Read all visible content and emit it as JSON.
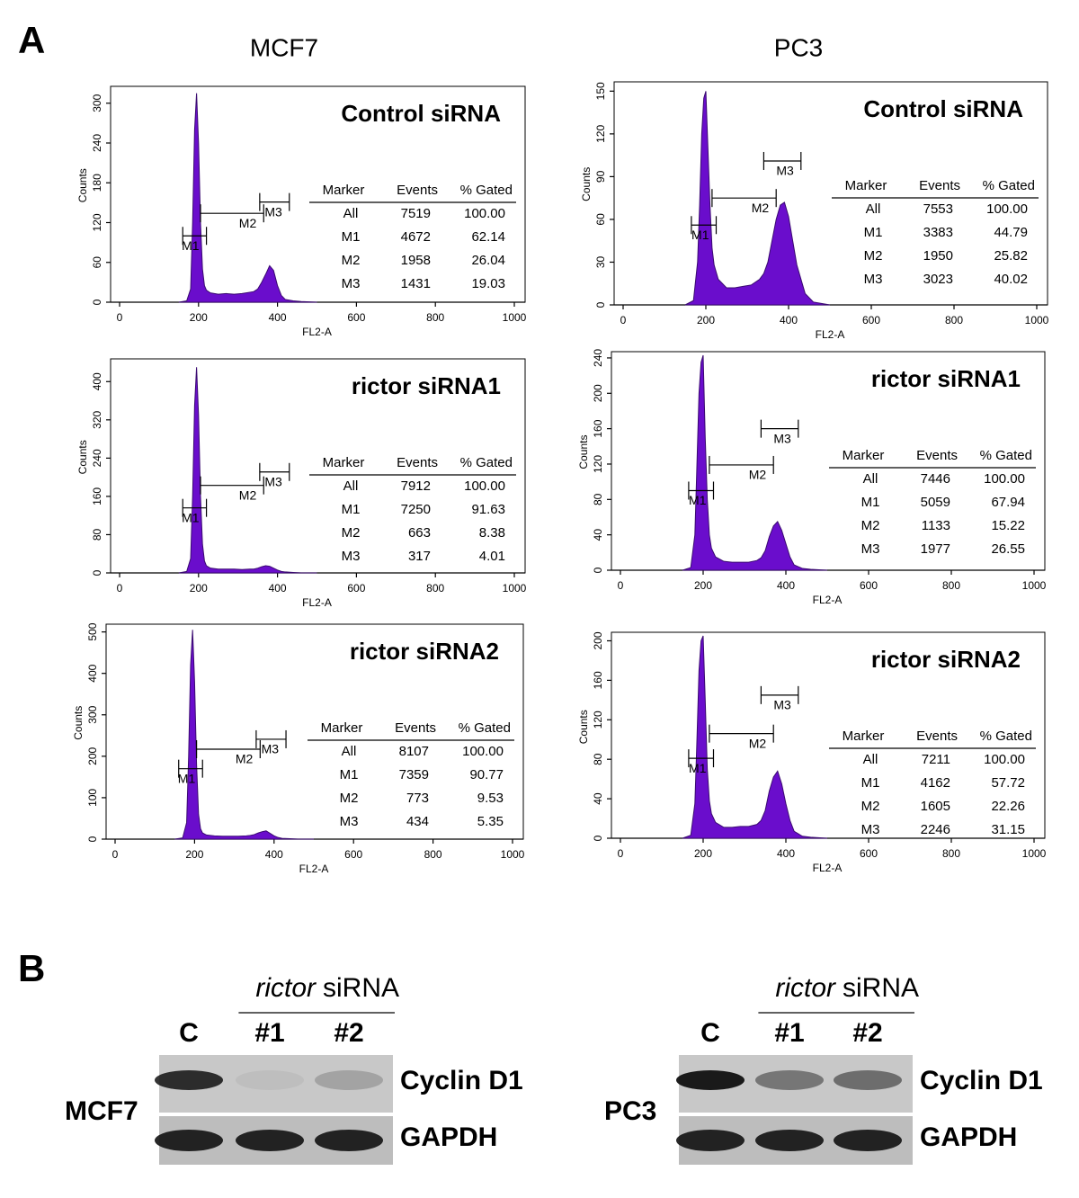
{
  "panel_labels": {
    "a": "A",
    "b": "B"
  },
  "columns": [
    "MCF7",
    "PC3"
  ],
  "chart_data": [
    {
      "type": "area",
      "title": "Control siRNA",
      "x_label": "FL2-A",
      "y_label": "Counts",
      "color": "#6a0dcc",
      "x": [
        150,
        170,
        180,
        185,
        190,
        195,
        200,
        205,
        210,
        215,
        220,
        230,
        250,
        270,
        290,
        310,
        330,
        340,
        350,
        360,
        370,
        380,
        390,
        400,
        410,
        420,
        440,
        460,
        500
      ],
      "values": [
        0,
        2,
        20,
        120,
        260,
        315,
        240,
        120,
        50,
        25,
        18,
        14,
        12,
        13,
        12,
        13,
        15,
        16,
        20,
        30,
        42,
        55,
        48,
        25,
        10,
        4,
        2,
        1,
        0
      ],
      "xlim": [
        0,
        1000
      ],
      "xticks": [
        0,
        200,
        400,
        600,
        800,
        1000
      ],
      "ylim": [
        0,
        320
      ],
      "yticks": [
        0,
        60,
        120,
        180,
        240,
        300
      ],
      "markers": [
        {
          "label": "M1",
          "range": [
            160,
            220
          ],
          "y": 100
        },
        {
          "label": "M2",
          "range": [
            205,
            365
          ],
          "y": 134
        },
        {
          "label": "M3",
          "range": [
            355,
            430
          ],
          "y": 151
        }
      ],
      "table": {
        "header": [
          "Marker",
          "Events",
          "% Gated"
        ],
        "rows": [
          [
            "All",
            "7519",
            "100.00"
          ],
          [
            "M1",
            "4672",
            "62.14"
          ],
          [
            "M2",
            "1958",
            "26.04"
          ],
          [
            "M3",
            "1431",
            "19.03"
          ]
        ]
      }
    },
    {
      "type": "area",
      "title": "Control siRNA",
      "x_label": "FL2-A",
      "y_label": "Counts",
      "color": "#6a0dcc",
      "x": [
        150,
        170,
        180,
        185,
        190,
        195,
        200,
        205,
        210,
        215,
        220,
        230,
        250,
        270,
        290,
        310,
        330,
        340,
        350,
        360,
        370,
        380,
        390,
        400,
        410,
        420,
        440,
        460,
        500
      ],
      "values": [
        0,
        3,
        30,
        70,
        120,
        145,
        150,
        110,
        70,
        40,
        28,
        18,
        12,
        12,
        13,
        14,
        18,
        22,
        30,
        45,
        60,
        70,
        72,
        62,
        45,
        28,
        8,
        2,
        0
      ],
      "xlim": [
        0,
        1000
      ],
      "xticks": [
        0,
        200,
        400,
        600,
        800,
        1000
      ],
      "ylim": [
        0,
        154
      ],
      "yticks": [
        0,
        30,
        60,
        90,
        120,
        150
      ],
      "markers": [
        {
          "label": "M1",
          "range": [
            165,
            225
          ],
          "y": 56
        },
        {
          "label": "M2",
          "range": [
            215,
            370
          ],
          "y": 75
        },
        {
          "label": "M3",
          "range": [
            340,
            430
          ],
          "y": 101
        }
      ],
      "table": {
        "header": [
          "Marker",
          "Events",
          "% Gated"
        ],
        "rows": [
          [
            "All",
            "7553",
            "100.00"
          ],
          [
            "M1",
            "3383",
            "44.79"
          ],
          [
            "M2",
            "1950",
            "25.82"
          ],
          [
            "M3",
            "3023",
            "40.02"
          ]
        ]
      }
    },
    {
      "type": "area",
      "title": "rictor siRNA1",
      "x_label": "FL2-A",
      "y_label": "Counts",
      "color": "#6a0dcc",
      "x": [
        150,
        170,
        180,
        185,
        190,
        195,
        200,
        205,
        210,
        215,
        220,
        230,
        250,
        270,
        290,
        310,
        330,
        340,
        350,
        360,
        370,
        380,
        390,
        400,
        410,
        420,
        440,
        460,
        500
      ],
      "values": [
        0,
        3,
        30,
        160,
        350,
        430,
        330,
        160,
        60,
        25,
        15,
        10,
        8,
        8,
        8,
        7,
        8,
        8,
        10,
        13,
        15,
        14,
        10,
        6,
        3,
        2,
        1,
        0,
        0
      ],
      "xlim": [
        0,
        1000
      ],
      "xticks": [
        0,
        200,
        400,
        600,
        800,
        1000
      ],
      "ylim": [
        0,
        440
      ],
      "yticks": [
        0,
        80,
        160,
        240,
        320,
        400
      ],
      "markers": [
        {
          "label": "M1",
          "range": [
            160,
            220
          ],
          "y": 136
        },
        {
          "label": "M2",
          "range": [
            205,
            365
          ],
          "y": 183
        },
        {
          "label": "M3",
          "range": [
            355,
            430
          ],
          "y": 211
        }
      ],
      "table": {
        "header": [
          "Marker",
          "Events",
          "% Gated"
        ],
        "rows": [
          [
            "All",
            "7912",
            "100.00"
          ],
          [
            "M1",
            "7250",
            "91.63"
          ],
          [
            "M2",
            "663",
            "8.38"
          ],
          [
            "M3",
            "317",
            "4.01"
          ]
        ]
      }
    },
    {
      "type": "area",
      "title": "rictor siRNA1",
      "x_label": "FL2-A",
      "y_label": "Counts",
      "color": "#6a0dcc",
      "x": [
        150,
        170,
        180,
        185,
        190,
        195,
        200,
        205,
        210,
        215,
        220,
        230,
        250,
        270,
        290,
        310,
        330,
        340,
        350,
        360,
        370,
        380,
        390,
        400,
        410,
        420,
        440,
        460,
        500
      ],
      "values": [
        0,
        3,
        40,
        120,
        200,
        235,
        243,
        150,
        80,
        40,
        25,
        15,
        10,
        9,
        9,
        9,
        11,
        14,
        22,
        38,
        50,
        55,
        45,
        30,
        15,
        6,
        2,
        1,
        0
      ],
      "xlim": [
        0,
        1000
      ],
      "xticks": [
        0,
        200,
        400,
        600,
        800,
        1000
      ],
      "ylim": [
        0,
        243
      ],
      "yticks": [
        0,
        40,
        80,
        120,
        160,
        200,
        240
      ],
      "markers": [
        {
          "label": "M1",
          "range": [
            165,
            225
          ],
          "y": 90
        },
        {
          "label": "M2",
          "range": [
            215,
            370
          ],
          "y": 119
        },
        {
          "label": "M3",
          "range": [
            340,
            430
          ],
          "y": 160
        }
      ],
      "table": {
        "header": [
          "Marker",
          "Events",
          "% Gated"
        ],
        "rows": [
          [
            "All",
            "7446",
            "100.00"
          ],
          [
            "M1",
            "5059",
            "67.94"
          ],
          [
            "M2",
            "1133",
            "15.22"
          ],
          [
            "M3",
            "1977",
            "26.55"
          ]
        ]
      }
    },
    {
      "type": "area",
      "title": "rictor siRNA2",
      "x_label": "FL2-A",
      "y_label": "Counts",
      "color": "#6a0dcc",
      "x": [
        150,
        170,
        180,
        185,
        190,
        195,
        200,
        205,
        210,
        215,
        220,
        230,
        250,
        270,
        290,
        310,
        330,
        340,
        350,
        360,
        370,
        380,
        390,
        400,
        410,
        420,
        440,
        460,
        500
      ],
      "values": [
        0,
        3,
        40,
        200,
        420,
        505,
        380,
        180,
        60,
        25,
        15,
        10,
        8,
        7,
        7,
        7,
        8,
        9,
        11,
        15,
        18,
        20,
        14,
        8,
        4,
        2,
        1,
        0,
        0
      ],
      "xlim": [
        0,
        1000
      ],
      "xticks": [
        0,
        200,
        400,
        600,
        800,
        1000
      ],
      "ylim": [
        0,
        510
      ],
      "yticks": [
        0,
        100,
        200,
        300,
        400,
        500
      ],
      "markers": [
        {
          "label": "M1",
          "range": [
            160,
            220
          ],
          "y": 170
        },
        {
          "label": "M2",
          "range": [
            205,
            365
          ],
          "y": 217
        },
        {
          "label": "M3",
          "range": [
            355,
            430
          ],
          "y": 241
        }
      ],
      "table": {
        "header": [
          "Marker",
          "Events",
          "% Gated"
        ],
        "rows": [
          [
            "All",
            "8107",
            "100.00"
          ],
          [
            "M1",
            "7359",
            "90.77"
          ],
          [
            "M2",
            "773",
            "9.53"
          ],
          [
            "M3",
            "434",
            "5.35"
          ]
        ]
      }
    },
    {
      "type": "area",
      "title": "rictor siRNA2",
      "x_label": "FL2-A",
      "y_label": "Counts",
      "color": "#6a0dcc",
      "x": [
        150,
        170,
        180,
        185,
        190,
        195,
        200,
        205,
        210,
        215,
        220,
        230,
        250,
        270,
        290,
        310,
        330,
        340,
        350,
        360,
        370,
        380,
        390,
        400,
        410,
        420,
        440,
        460,
        500
      ],
      "values": [
        0,
        3,
        35,
        100,
        170,
        200,
        205,
        140,
        70,
        38,
        25,
        16,
        11,
        11,
        12,
        12,
        14,
        18,
        28,
        48,
        62,
        68,
        55,
        35,
        18,
        7,
        2,
        1,
        0
      ],
      "xlim": [
        0,
        1000
      ],
      "xticks": [
        0,
        200,
        400,
        600,
        800,
        1000
      ],
      "ylim": [
        0,
        205
      ],
      "yticks": [
        0,
        40,
        80,
        120,
        160,
        200
      ],
      "markers": [
        {
          "label": "M1",
          "range": [
            165,
            225
          ],
          "y": 81
        },
        {
          "label": "M2",
          "range": [
            215,
            370
          ],
          "y": 106
        },
        {
          "label": "M3",
          "range": [
            340,
            430
          ],
          "y": 145
        }
      ],
      "table": {
        "header": [
          "Marker",
          "Events",
          "% Gated"
        ],
        "rows": [
          [
            "All",
            "7211",
            "100.00"
          ],
          [
            "M1",
            "4162",
            "57.72"
          ],
          [
            "M2",
            "1605",
            "22.26"
          ],
          [
            "M3",
            "2246",
            "31.15"
          ]
        ]
      }
    }
  ],
  "blots": [
    {
      "cell_line": "MCF7",
      "group_italic": "rictor",
      "group": "siRNA",
      "lanes": [
        "C",
        "#1",
        "#2"
      ],
      "bands": [
        "Cyclin D1",
        "GAPDH"
      ]
    },
    {
      "cell_line": "PC3",
      "group_italic": "rictor",
      "group": "siRNA",
      "lanes": [
        "C",
        "#1",
        "#2"
      ],
      "bands": [
        "Cyclin D1",
        "GAPDH"
      ]
    }
  ]
}
